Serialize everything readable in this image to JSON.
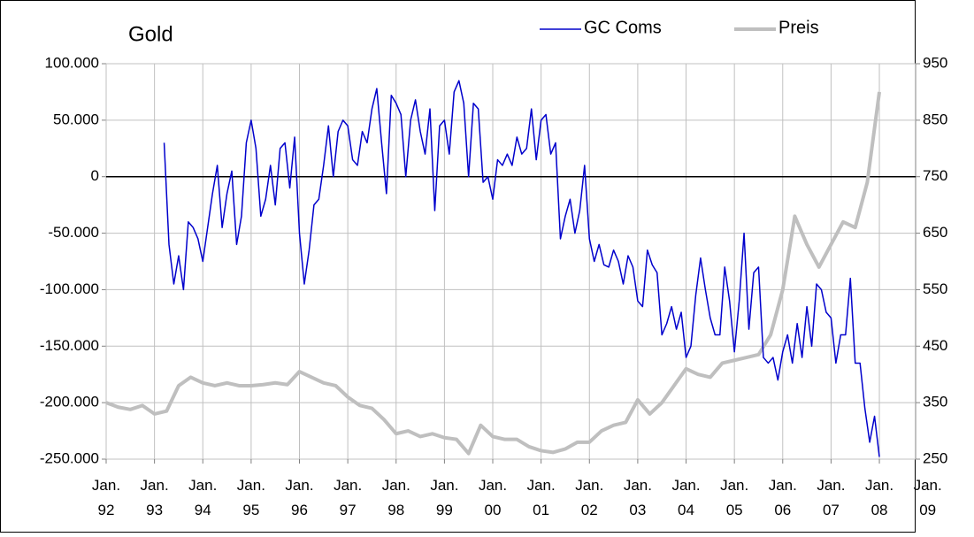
{
  "chart_data": {
    "type": "line",
    "title": "Gold",
    "xlim": [
      1992,
      2008.75
    ],
    "xticks": [
      {
        "value": 1992,
        "label": "Jan. 92"
      },
      {
        "value": 1993,
        "label": "Jan. 93"
      },
      {
        "value": 1994,
        "label": "Jan. 94"
      },
      {
        "value": 1995,
        "label": "Jan. 95"
      },
      {
        "value": 1996,
        "label": "Jan. 96"
      },
      {
        "value": 1997,
        "label": "Jan. 97"
      },
      {
        "value": 1998,
        "label": "Jan. 98"
      },
      {
        "value": 1999,
        "label": "Jan. 99"
      },
      {
        "value": 2000,
        "label": "Jan. 00"
      },
      {
        "value": 2001,
        "label": "Jan. 01"
      },
      {
        "value": 2002,
        "label": "Jan. 02"
      },
      {
        "value": 2003,
        "label": "Jan. 03"
      },
      {
        "value": 2004,
        "label": "Jan. 04"
      },
      {
        "value": 2005,
        "label": "Jan. 05"
      },
      {
        "value": 2006,
        "label": "Jan. 06"
      },
      {
        "value": 2007,
        "label": "Jan. 07"
      },
      {
        "value": 2008,
        "label": "Jan. 08"
      },
      {
        "value": 2009,
        "label": "Jan. 09"
      }
    ],
    "ylim": [
      -250000,
      100000
    ],
    "yticks": [
      {
        "value": -250000,
        "label": "-250.000"
      },
      {
        "value": -200000,
        "label": "-200.000"
      },
      {
        "value": -150000,
        "label": "-150.000"
      },
      {
        "value": -100000,
        "label": "-100.000"
      },
      {
        "value": -50000,
        "label": "-50.000"
      },
      0,
      {
        "value": 50000,
        "label": "50.000"
      },
      {
        "value": 100000,
        "label": "100.000"
      }
    ],
    "negative_tick_color": "#ff0000",
    "y2lim": [
      250,
      950
    ],
    "y2ticks": [
      250,
      350,
      450,
      550,
      650,
      750,
      850,
      950
    ],
    "grid": true,
    "series": [
      {
        "name": "GC Coms",
        "color": "#0000cc",
        "axis": "y",
        "x": [
          1993.2,
          1993.3,
          1993.4,
          1993.5,
          1993.6,
          1993.7,
          1993.8,
          1993.9,
          1994.0,
          1994.1,
          1994.2,
          1994.3,
          1994.4,
          1994.5,
          1994.6,
          1994.7,
          1994.8,
          1994.9,
          1995.0,
          1995.1,
          1995.2,
          1995.3,
          1995.4,
          1995.5,
          1995.6,
          1995.7,
          1995.8,
          1995.9,
          1996.0,
          1996.1,
          1996.2,
          1996.3,
          1996.4,
          1996.5,
          1996.6,
          1996.7,
          1996.8,
          1996.9,
          1997.0,
          1997.1,
          1997.2,
          1997.3,
          1997.4,
          1997.5,
          1997.6,
          1997.7,
          1997.8,
          1997.9,
          1998.0,
          1998.1,
          1998.2,
          1998.3,
          1998.4,
          1998.5,
          1998.6,
          1998.7,
          1998.8,
          1998.9,
          1999.0,
          1999.1,
          1999.2,
          1999.3,
          1999.4,
          1999.5,
          1999.6,
          1999.7,
          1999.8,
          1999.9,
          2000.0,
          2000.1,
          2000.2,
          2000.3,
          2000.4,
          2000.5,
          2000.6,
          2000.7,
          2000.8,
          2000.9,
          2001.0,
          2001.1,
          2001.2,
          2001.3,
          2001.4,
          2001.5,
          2001.6,
          2001.7,
          2001.8,
          2001.9,
          2002.0,
          2002.1,
          2002.2,
          2002.3,
          2002.4,
          2002.5,
          2002.6,
          2002.7,
          2002.8,
          2002.9,
          2003.0,
          2003.1,
          2003.2,
          2003.3,
          2003.4,
          2003.5,
          2003.6,
          2003.7,
          2003.8,
          2003.9,
          2004.0,
          2004.1,
          2004.2,
          2004.3,
          2004.4,
          2004.5,
          2004.6,
          2004.7,
          2004.8,
          2004.9,
          2005.0,
          2005.1,
          2005.2,
          2005.3,
          2005.4,
          2005.5,
          2005.6,
          2005.7,
          2005.8,
          2005.9,
          2006.0,
          2006.1,
          2006.2,
          2006.3,
          2006.4,
          2006.5,
          2006.6,
          2006.7,
          2006.8,
          2006.9,
          2007.0,
          2007.1,
          2007.2,
          2007.3,
          2007.4,
          2007.5,
          2007.6,
          2007.7,
          2007.8,
          2007.9,
          2008.0
        ],
        "values": [
          30000,
          -60000,
          -95000,
          -70000,
          -100000,
          -40000,
          -45000,
          -55000,
          -75000,
          -45000,
          -15000,
          10000,
          -45000,
          -15000,
          5000,
          -60000,
          -35000,
          30000,
          50000,
          25000,
          -35000,
          -20000,
          10000,
          -25000,
          25000,
          30000,
          -10000,
          35000,
          -50000,
          -95000,
          -65000,
          -25000,
          -20000,
          10000,
          45000,
          0,
          40000,
          50000,
          45000,
          15000,
          10000,
          40000,
          30000,
          60000,
          78000,
          30000,
          -15000,
          72000,
          65000,
          55000,
          0,
          50000,
          68000,
          40000,
          20000,
          60000,
          -30000,
          45000,
          50000,
          20000,
          75000,
          85000,
          65000,
          0,
          65000,
          60000,
          -5000,
          0,
          -20000,
          15000,
          10000,
          20000,
          10000,
          35000,
          20000,
          25000,
          60000,
          15000,
          50000,
          55000,
          20000,
          30000,
          -55000,
          -35000,
          -20000,
          -50000,
          -30000,
          10000,
          -55000,
          -75000,
          -60000,
          -78000,
          -80000,
          -65000,
          -75000,
          -95000,
          -70000,
          -80000,
          -110000,
          -115000,
          -65000,
          -78000,
          -85000,
          -140000,
          -130000,
          -115000,
          -135000,
          -120000,
          -160000,
          -150000,
          -105000,
          -72000,
          -100000,
          -125000,
          -140000,
          -140000,
          -80000,
          -110000,
          -155000,
          -110000,
          -50000,
          -135000,
          -85000,
          -80000,
          -160000,
          -165000,
          -160000,
          -180000,
          -155000,
          -140000,
          -165000,
          -130000,
          -160000,
          -115000,
          -150000,
          -95000,
          -100000,
          -120000,
          -125000,
          -165000,
          -140000,
          -140000,
          -90000,
          -165000,
          -165000,
          -205000,
          -235000,
          -212000,
          -248000
        ]
      },
      {
        "name": "Preis",
        "color": "#bfbfbf",
        "axis": "y2",
        "x": [
          1992.0,
          1992.25,
          1992.5,
          1992.75,
          1993.0,
          1993.25,
          1993.5,
          1993.75,
          1994.0,
          1994.25,
          1994.5,
          1994.75,
          1995.0,
          1995.25,
          1995.5,
          1995.75,
          1996.0,
          1996.25,
          1996.5,
          1996.75,
          1997.0,
          1997.25,
          1997.5,
          1997.75,
          1998.0,
          1998.25,
          1998.5,
          1998.75,
          1999.0,
          1999.25,
          1999.5,
          1999.75,
          2000.0,
          2000.25,
          2000.5,
          2000.75,
          2001.0,
          2001.25,
          2001.5,
          2001.75,
          2002.0,
          2002.25,
          2002.5,
          2002.75,
          2003.0,
          2003.25,
          2003.5,
          2003.75,
          2004.0,
          2004.25,
          2004.5,
          2004.75,
          2005.0,
          2005.25,
          2005.5,
          2005.75,
          2006.0,
          2006.25,
          2006.5,
          2006.75,
          2007.0,
          2007.25,
          2007.5,
          2007.75,
          2008.0
        ],
        "values": [
          350,
          342,
          338,
          345,
          330,
          335,
          380,
          395,
          385,
          380,
          385,
          380,
          380,
          382,
          385,
          382,
          405,
          395,
          385,
          380,
          360,
          345,
          340,
          320,
          295,
          300,
          290,
          295,
          288,
          285,
          260,
          310,
          290,
          285,
          285,
          272,
          265,
          262,
          268,
          280,
          280,
          300,
          310,
          315,
          355,
          330,
          350,
          380,
          410,
          400,
          395,
          420,
          425,
          430,
          435,
          470,
          550,
          680,
          630,
          590,
          630,
          670,
          660,
          740,
          900
        ]
      }
    ]
  }
}
